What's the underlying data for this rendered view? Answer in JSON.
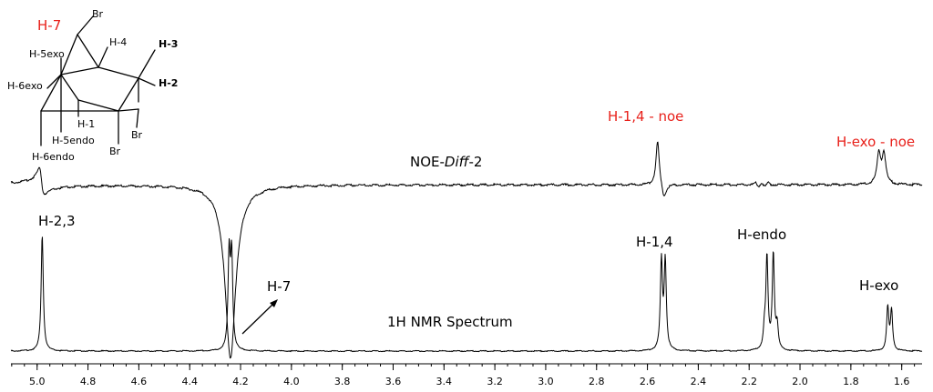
{
  "chart_data": {
    "type": "line",
    "xlabel": "",
    "ylabel": "",
    "x_reversed": true,
    "xlim": [
      5.1,
      1.52
    ],
    "x_ticks": [
      5.0,
      4.8,
      4.6,
      4.4,
      4.2,
      4.0,
      3.8,
      3.6,
      3.4,
      3.2,
      3.0,
      2.8,
      2.6,
      2.4,
      2.2,
      2.0,
      1.8,
      1.6
    ],
    "x_tick_labels": [
      "5.0",
      "4.8",
      "4.6",
      "4.4",
      "4.2",
      "4.0",
      "3.8",
      "3.6",
      "3.4",
      "3.2",
      "3.0",
      "2.8",
      "2.6",
      "2.4",
      "2.2",
      "2.0",
      "1.8",
      "1.6"
    ],
    "series": [
      {
        "name": "NOE-Diff-2",
        "name_plain": "NOE-",
        "name_italic": "Diff",
        "name_suffix": "-2",
        "peaks": [
          {
            "ppm": 4.98,
            "shape": "dispersive",
            "intensity": 0.35
          },
          {
            "ppm": 4.24,
            "shape": "negative",
            "intensity": 1.0
          },
          {
            "ppm": 2.56,
            "shape": "positive",
            "intensity": 0.55
          },
          {
            "ppm": 2.15,
            "shape": "multiplet",
            "intensity": 0.12
          },
          {
            "ppm": 1.69,
            "shape": "doublet",
            "intensity": 0.35
          },
          {
            "ppm": 1.67,
            "shape": "doublet",
            "intensity": 0.35
          }
        ]
      },
      {
        "name": "1H NMR Spectrum",
        "peaks": [
          {
            "ppm": 4.98,
            "shape": "singlet",
            "intensity": 1.0
          },
          {
            "ppm": 4.245,
            "shape": "singlet",
            "intensity": 0.8
          },
          {
            "ppm": 4.235,
            "shape": "singlet",
            "intensity": 0.8
          },
          {
            "ppm": 2.545,
            "shape": "singlet",
            "intensity": 0.76
          },
          {
            "ppm": 2.53,
            "shape": "singlet",
            "intensity": 0.76
          },
          {
            "ppm": 2.13,
            "shape": "singlet",
            "intensity": 0.79
          },
          {
            "ppm": 2.105,
            "shape": "singlet",
            "intensity": 0.82
          },
          {
            "ppm": 2.09,
            "shape": "singlet",
            "intensity": 0.2
          },
          {
            "ppm": 2.14,
            "shape": "singlet",
            "intensity": 0.15
          },
          {
            "ppm": 1.655,
            "shape": "singlet",
            "intensity": 0.37
          },
          {
            "ppm": 1.64,
            "shape": "singlet",
            "intensity": 0.34
          }
        ]
      }
    ],
    "annotations": {
      "noe": [
        {
          "text": "H-1,4 - noe",
          "ppm": 2.55,
          "color": "#e8201a"
        },
        {
          "text": "H-exo - noe",
          "ppm": 1.68,
          "color": "#e8201a"
        }
      ],
      "spectrum": [
        {
          "text": "H-2,3",
          "ppm": 4.98
        },
        {
          "text": "H-1,4",
          "ppm": 2.54
        },
        {
          "text": "H-endo",
          "ppm": 2.1
        },
        {
          "text": "H-exo",
          "ppm": 1.645
        },
        {
          "text": "H-7",
          "ppm": 4.1
        }
      ]
    },
    "structure_labels": {
      "h7": "H-7",
      "br_top": "Br",
      "h4": "H-4",
      "h3": "H-3",
      "h2": "H-2",
      "h5exo": "H-5exo",
      "h6exo": "H-6exo",
      "h1": "H-1",
      "h5endo": "H-5endo",
      "h6endo": "H-6endo",
      "br_right": "Br",
      "br_bottom": "Br"
    },
    "colors": {
      "trace": "#000000",
      "highlight": "#e8201a"
    }
  }
}
